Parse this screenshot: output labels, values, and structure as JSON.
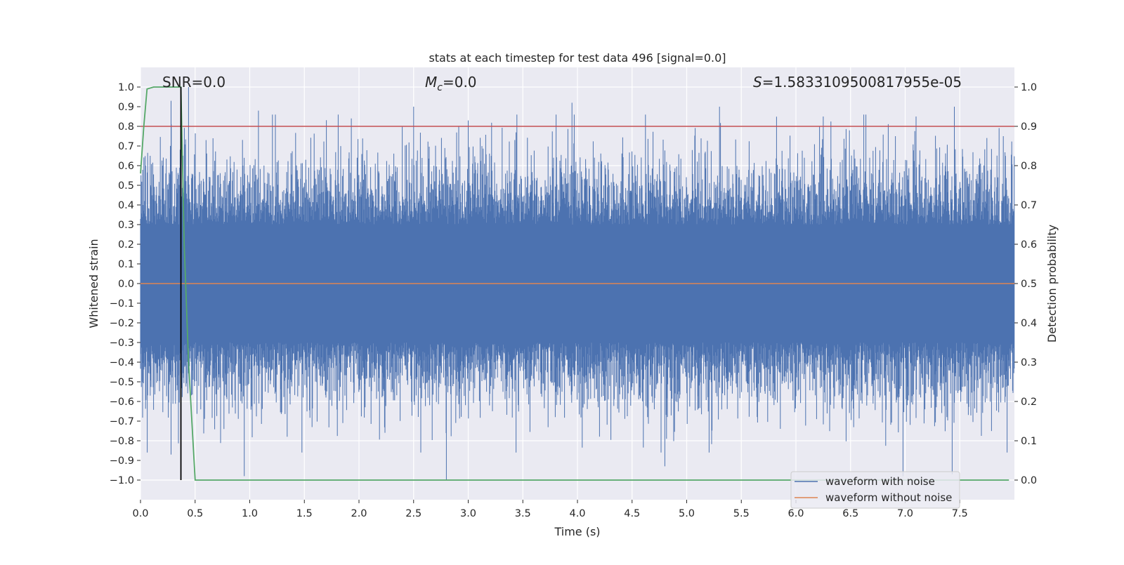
{
  "chart_data": {
    "type": "line",
    "title": "stats at each timestep for test data 496 [signal=0.0]",
    "xlabel": "Time (s)",
    "ylabel": "Whitened strain",
    "y2label": "Detection probability",
    "xlim": [
      0.0,
      8.0
    ],
    "ylim": [
      -1.1,
      1.1
    ],
    "y2lim": [
      -0.05,
      1.05
    ],
    "x_ticks": [
      "0.0",
      "0.5",
      "1.0",
      "1.5",
      "2.0",
      "2.5",
      "3.0",
      "3.5",
      "4.0",
      "4.5",
      "5.0",
      "5.5",
      "6.0",
      "6.5",
      "7.0",
      "7.5"
    ],
    "y_ticks": [
      "1.0",
      "0.9",
      "0.8",
      "0.7",
      "0.6",
      "0.5",
      "0.4",
      "0.3",
      "0.2",
      "0.1",
      "0.0",
      "−0.1",
      "−0.2",
      "−0.3",
      "−0.4",
      "−0.5",
      "−0.6",
      "−0.7",
      "−0.8",
      "−0.9",
      "−1.0"
    ],
    "y2_ticks": [
      "1.0",
      "0.9",
      "0.8",
      "0.7",
      "0.6",
      "0.5",
      "0.4",
      "0.3",
      "0.2",
      "0.1",
      "0.0"
    ],
    "grid": true,
    "legend_position": "lower right",
    "annotations": {
      "snr": "SNR=0.0",
      "mc_symbol": "M",
      "mc_sub": "c",
      "mc_value": "=0.0",
      "s_symbol": "S",
      "s_value": "=1.5833109500817955e-05"
    },
    "series": [
      {
        "name": "waveform with noise",
        "color": "#4c72b0",
        "axis": "left",
        "kind": "noise",
        "x_range": [
          0.0,
          8.0
        ],
        "peak_samples": [
          {
            "x": 0.28,
            "y": 0.93
          },
          {
            "x": 0.44,
            "y": 1.0
          },
          {
            "x": 0.6,
            "y": 0.73
          },
          {
            "x": 1.08,
            "y": 0.88
          },
          {
            "x": 1.93,
            "y": 0.84
          },
          {
            "x": 2.5,
            "y": 0.9
          },
          {
            "x": 3.0,
            "y": 0.83
          },
          {
            "x": 3.95,
            "y": 0.92
          },
          {
            "x": 5.3,
            "y": 0.9
          },
          {
            "x": 6.25,
            "y": 0.85
          },
          {
            "x": 7.1,
            "y": 0.85
          },
          {
            "x": 7.45,
            "y": 0.9
          },
          {
            "x": 0.95,
            "y": -0.98
          },
          {
            "x": 2.8,
            "y": -1.0
          },
          {
            "x": 6.98,
            "y": -0.98
          },
          {
            "x": 7.43,
            "y": -0.97
          },
          {
            "x": 4.8,
            "y": -0.93
          },
          {
            "x": 0.28,
            "y": -0.87
          }
        ]
      },
      {
        "name": "waveform without noise",
        "color": "#dd8452",
        "axis": "left",
        "x": [
          0.0,
          8.0
        ],
        "y": [
          0.0,
          0.0
        ]
      },
      {
        "color": "#55a868",
        "axis": "right",
        "x": [
          0.0,
          0.03,
          0.06,
          0.12,
          0.2,
          0.3,
          0.37,
          0.4,
          0.44,
          0.5,
          7.95
        ],
        "y": [
          0.78,
          0.9,
          0.995,
          1.0,
          1.0,
          1.0,
          1.0,
          0.6,
          0.3,
          0.0,
          0.0
        ]
      }
    ],
    "threshold_line": {
      "axis": "right",
      "y": 0.9,
      "color": "#c44e52"
    },
    "vertical_line": {
      "x": 0.37,
      "y_range": [
        -1.0,
        1.0
      ],
      "color": "#000000"
    }
  }
}
